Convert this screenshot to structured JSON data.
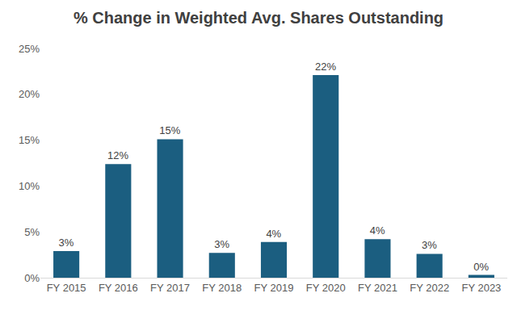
{
  "chart_data": {
    "type": "bar",
    "title": "% Change in Weighted Avg. Shares Outstanding",
    "categories": [
      "FY 2015",
      "FY 2016",
      "FY 2017",
      "FY 2018",
      "FY 2019",
      "FY 2020",
      "FY 2021",
      "FY 2022",
      "FY 2023"
    ],
    "values": [
      2.9,
      12.4,
      15.1,
      2.7,
      3.9,
      22.1,
      4.2,
      2.6,
      0.3
    ],
    "value_labels": [
      "3%",
      "12%",
      "15%",
      "3%",
      "4%",
      "22%",
      "4%",
      "3%",
      "0%"
    ],
    "color": "#1b5e80",
    "ylim": [
      0,
      25
    ],
    "yticks": [
      {
        "value": 0,
        "label": "0%"
      },
      {
        "value": 5,
        "label": "5%"
      },
      {
        "value": 10,
        "label": "10%"
      },
      {
        "value": 15,
        "label": "15%"
      },
      {
        "value": 20,
        "label": "20%"
      },
      {
        "value": 25,
        "label": "25%"
      }
    ],
    "grid": false,
    "data_labels": true
  }
}
